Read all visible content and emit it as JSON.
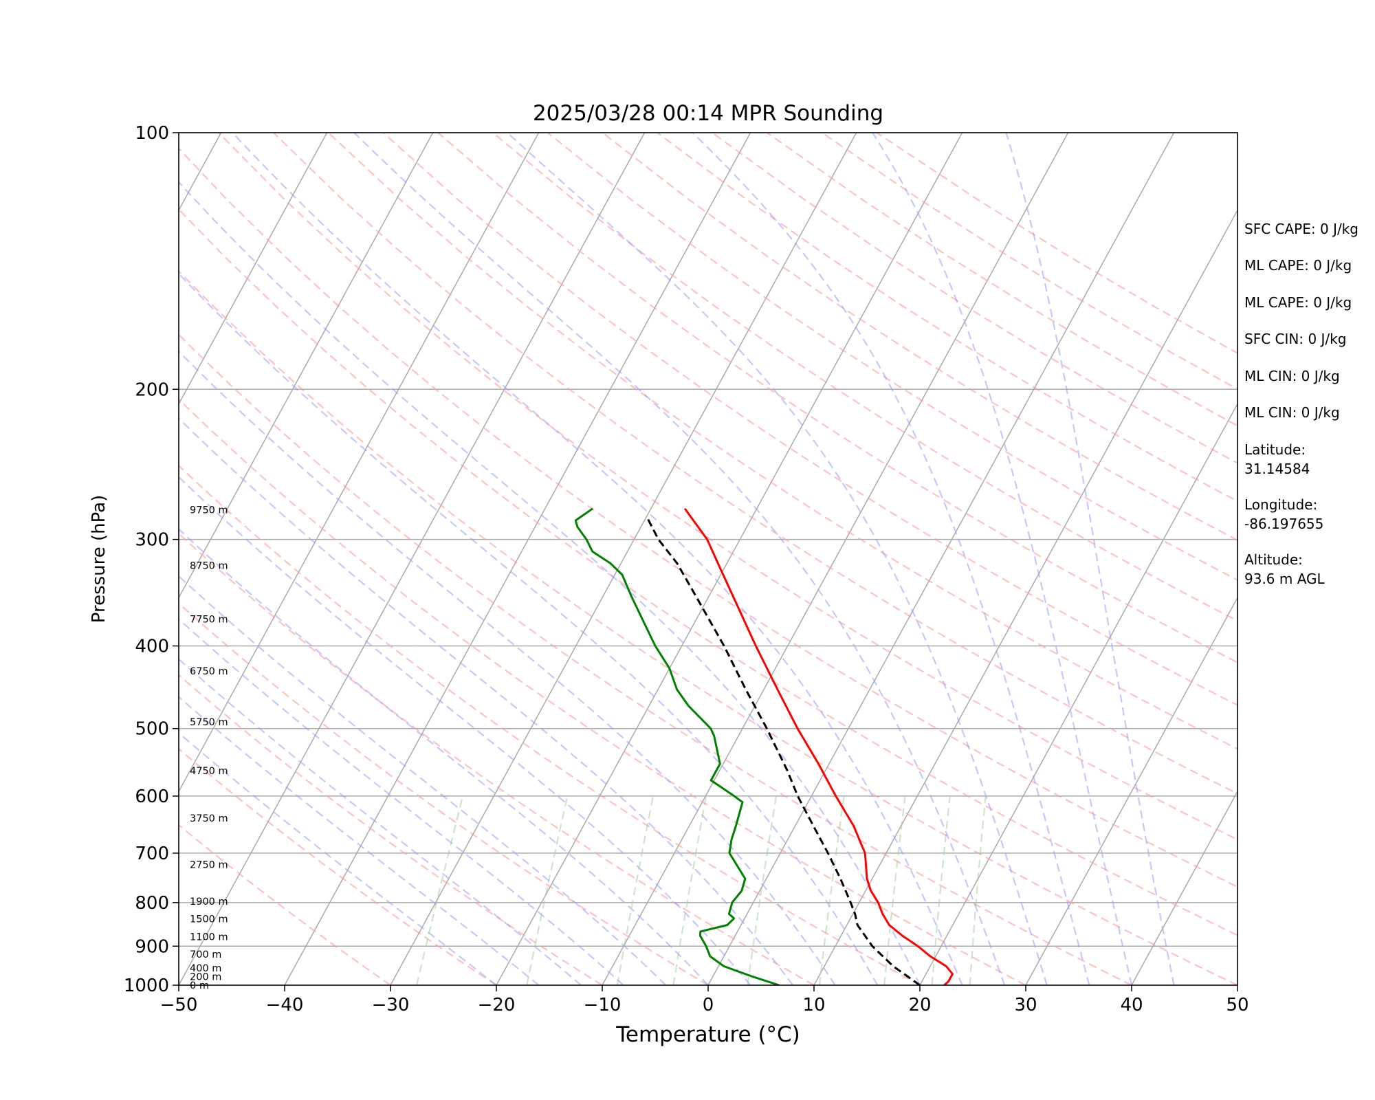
{
  "chart_data": {
    "type": "skew-t",
    "title": "2025/03/28 00:14 MPR Sounding",
    "xlabel": "Temperature (°C)",
    "ylabel": "Pressure (hPa)",
    "xlim": [
      -50,
      50
    ],
    "ylim": [
      1000,
      100
    ],
    "y_scale": "log",
    "grid": true,
    "x_ticks": [
      "−50",
      "−40",
      "−30",
      "−20",
      "−10",
      "0",
      "10",
      "20",
      "30",
      "40",
      "50"
    ],
    "y_ticks": [
      "1000",
      "900",
      "800",
      "700",
      "600",
      "500",
      "400",
      "300",
      "200",
      "100"
    ],
    "height_labels": [
      {
        "p": 1000,
        "label": "0 m"
      },
      {
        "p": 977,
        "label": "200 m"
      },
      {
        "p": 955,
        "label": "400 m"
      },
      {
        "p": 920,
        "label": "700 m"
      },
      {
        "p": 877,
        "label": "1100 m"
      },
      {
        "p": 836,
        "label": "1500 m"
      },
      {
        "p": 797,
        "label": "1900 m"
      },
      {
        "p": 722,
        "label": "2750 m"
      },
      {
        "p": 637,
        "label": "3750 m"
      },
      {
        "p": 560,
        "label": "4750 m"
      },
      {
        "p": 491,
        "label": "5750 m"
      },
      {
        "p": 428,
        "label": "6750 m"
      },
      {
        "p": 372,
        "label": "7750 m"
      },
      {
        "p": 322,
        "label": "8750 m"
      },
      {
        "p": 277,
        "label": "9750 m"
      }
    ],
    "series": [
      {
        "line": "temperature",
        "color": "#ff0000",
        "points": [
          [
            1000,
            22.3
          ],
          [
            990,
            22.5
          ],
          [
            970,
            22.5
          ],
          [
            950,
            21.5
          ],
          [
            925,
            19.5
          ],
          [
            900,
            17.8
          ],
          [
            875,
            15.8
          ],
          [
            850,
            14.0
          ],
          [
            825,
            12.8
          ],
          [
            800,
            11.8
          ],
          [
            775,
            10.5
          ],
          [
            750,
            9.5
          ],
          [
            700,
            8.0
          ],
          [
            650,
            5.5
          ],
          [
            600,
            2.3
          ],
          [
            550,
            -1.0
          ],
          [
            500,
            -4.8
          ],
          [
            450,
            -8.7
          ],
          [
            400,
            -13.0
          ],
          [
            350,
            -17.7
          ],
          [
            325,
            -20.3
          ],
          [
            300,
            -23.1
          ],
          [
            290,
            -24.6
          ],
          [
            276,
            -26.8
          ]
        ]
      },
      {
        "line": "dewpoint",
        "color": "#008000",
        "points": [
          [
            1000,
            6.7
          ],
          [
            975,
            3.5
          ],
          [
            950,
            0.5
          ],
          [
            925,
            -1.3
          ],
          [
            900,
            -2.2
          ],
          [
            875,
            -3.3
          ],
          [
            865,
            -3.5
          ],
          [
            850,
            -1.3
          ],
          [
            835,
            -1.0
          ],
          [
            825,
            -1.7
          ],
          [
            800,
            -2.0
          ],
          [
            775,
            -1.7
          ],
          [
            750,
            -2.0
          ],
          [
            700,
            -4.8
          ],
          [
            675,
            -5.3
          ],
          [
            650,
            -5.6
          ],
          [
            610,
            -6.2
          ],
          [
            600,
            -7.3
          ],
          [
            575,
            -10.3
          ],
          [
            550,
            -10.3
          ],
          [
            510,
            -12.3
          ],
          [
            500,
            -13.0
          ],
          [
            470,
            -16.3
          ],
          [
            450,
            -18.2
          ],
          [
            425,
            -20.0
          ],
          [
            400,
            -22.5
          ],
          [
            350,
            -27.3
          ],
          [
            330,
            -29.3
          ],
          [
            320,
            -31.0
          ],
          [
            310,
            -33.3
          ],
          [
            300,
            -34.5
          ],
          [
            290,
            -36.0
          ],
          [
            285,
            -36.5
          ],
          [
            276,
            -35.5
          ]
        ]
      },
      {
        "line": "parcel",
        "color": "#000000",
        "dashed": true,
        "points": [
          [
            1000,
            20.0
          ],
          [
            950,
            16.5
          ],
          [
            900,
            13.5
          ],
          [
            850,
            11.0
          ],
          [
            825,
            10.2
          ],
          [
            800,
            9.2
          ],
          [
            750,
            7.0
          ],
          [
            700,
            4.5
          ],
          [
            650,
            1.7
          ],
          [
            600,
            -1.3
          ],
          [
            560,
            -3.6
          ],
          [
            500,
            -7.7
          ],
          [
            450,
            -11.7
          ],
          [
            400,
            -16.0
          ],
          [
            350,
            -21.2
          ],
          [
            320,
            -24.7
          ],
          [
            300,
            -27.7
          ],
          [
            282,
            -30.0
          ]
        ]
      }
    ],
    "side_text": [
      "SFC CAPE: 0 J/kg",
      "ML CAPE: 0 J/kg",
      "ML CAPE: 0 J/kg",
      "SFC CIN: 0 J/kg",
      "ML CIN: 0 J/kg",
      "ML CIN: 0 J/kg",
      "Latitude:",
      "31.14584",
      "Longitude:",
      "-86.197655",
      "Altitude:",
      "93.6 m AGL"
    ],
    "background_colors": {
      "isotherm": "#aaaaaa",
      "dry_adiabat": "#ff9999",
      "moist_adiabat": "#9999ff",
      "mixing_ratio": "#99cc99",
      "isobar": "#aaaaaa"
    }
  }
}
